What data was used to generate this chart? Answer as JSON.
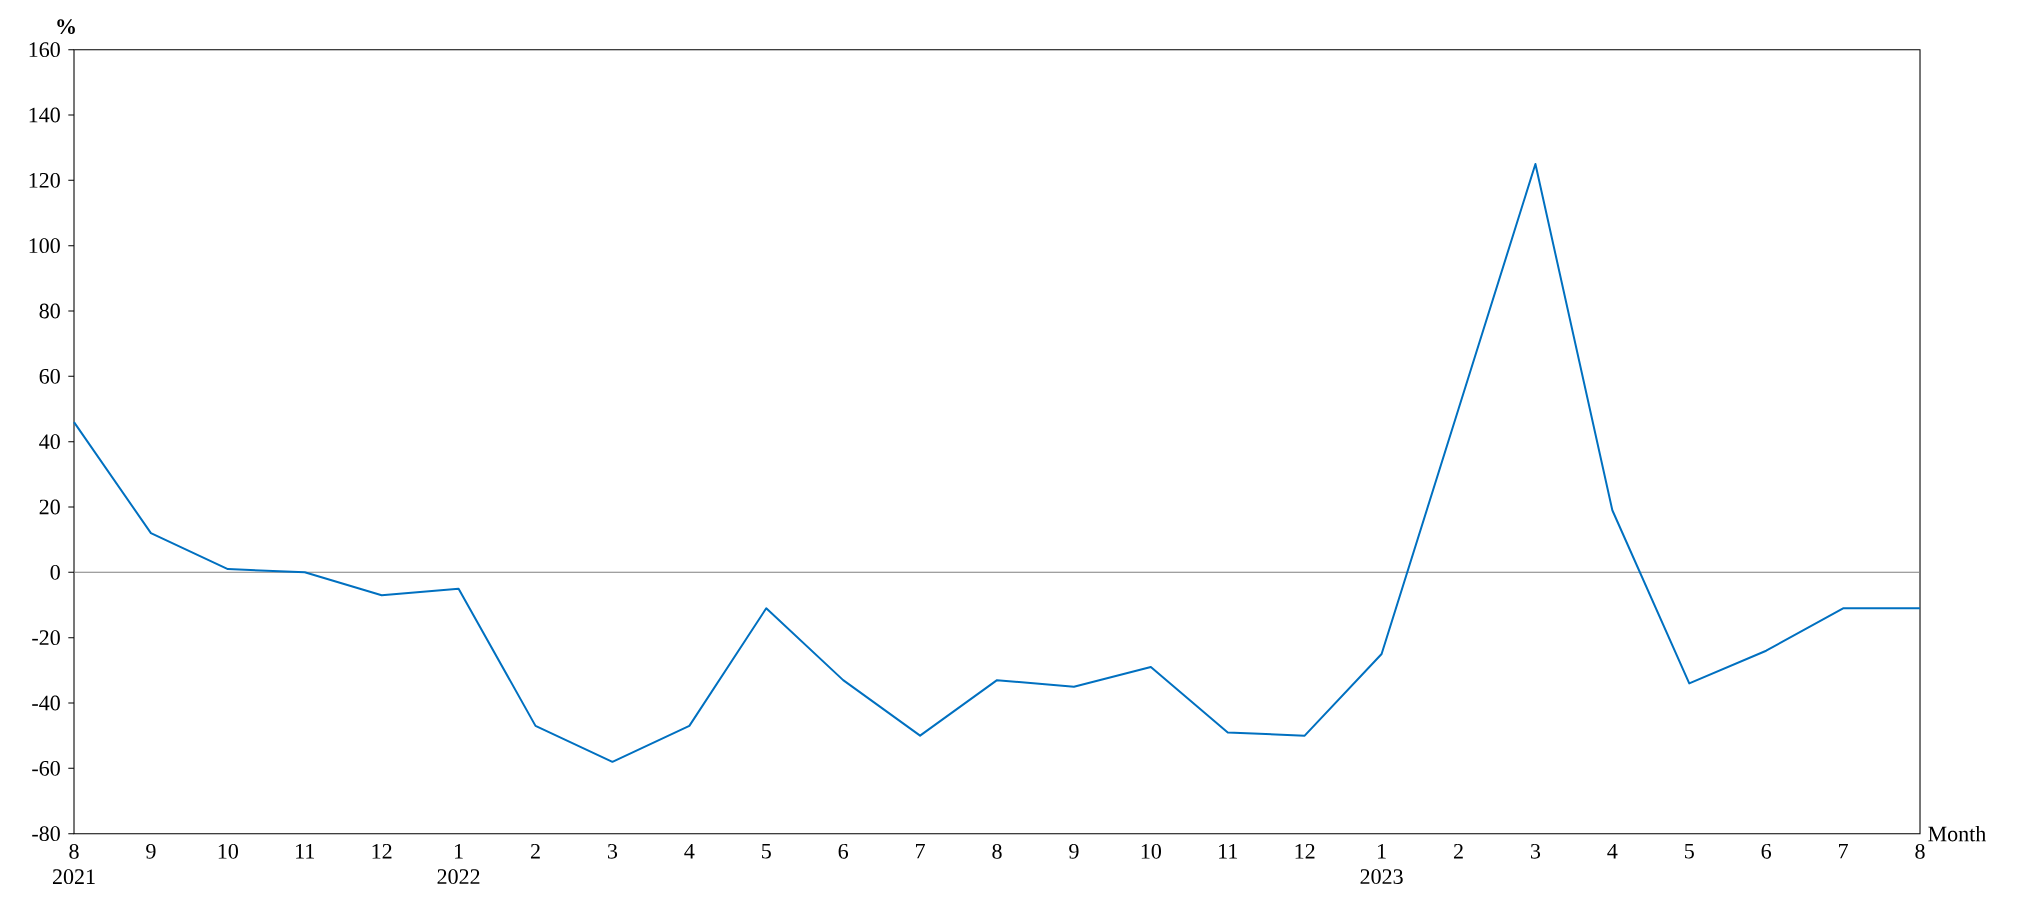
{
  "chart_data": {
    "type": "line",
    "xlabel": "Month",
    "ylabel": "%",
    "categories": [
      "8\n2021",
      "9",
      "10",
      "11",
      "12",
      "1\n2022",
      "2",
      "3",
      "4",
      "5",
      "6",
      "7",
      "8",
      "9",
      "10",
      "11",
      "12",
      "1\n2023",
      "2",
      "3",
      "4",
      "5",
      "6",
      "7",
      "8"
    ],
    "series": [
      {
        "color": "#0070c0",
        "values": [
          46,
          12,
          1,
          0,
          -7,
          -5,
          -47,
          -58,
          -47,
          -11,
          -33,
          -50,
          -33,
          -35,
          -29,
          -49,
          -50,
          -25,
          50,
          125,
          19,
          -34,
          -24,
          -11,
          -11
        ]
      }
    ],
    "ylim": [
      -80,
      160
    ],
    "yticks": [
      -80,
      -60,
      -40,
      -20,
      0,
      20,
      40,
      60,
      80,
      100,
      120,
      140,
      160
    ],
    "ref_lines": [
      {
        "axis": "y",
        "value": 0,
        "color": "#808080"
      }
    ],
    "grid": false
  }
}
